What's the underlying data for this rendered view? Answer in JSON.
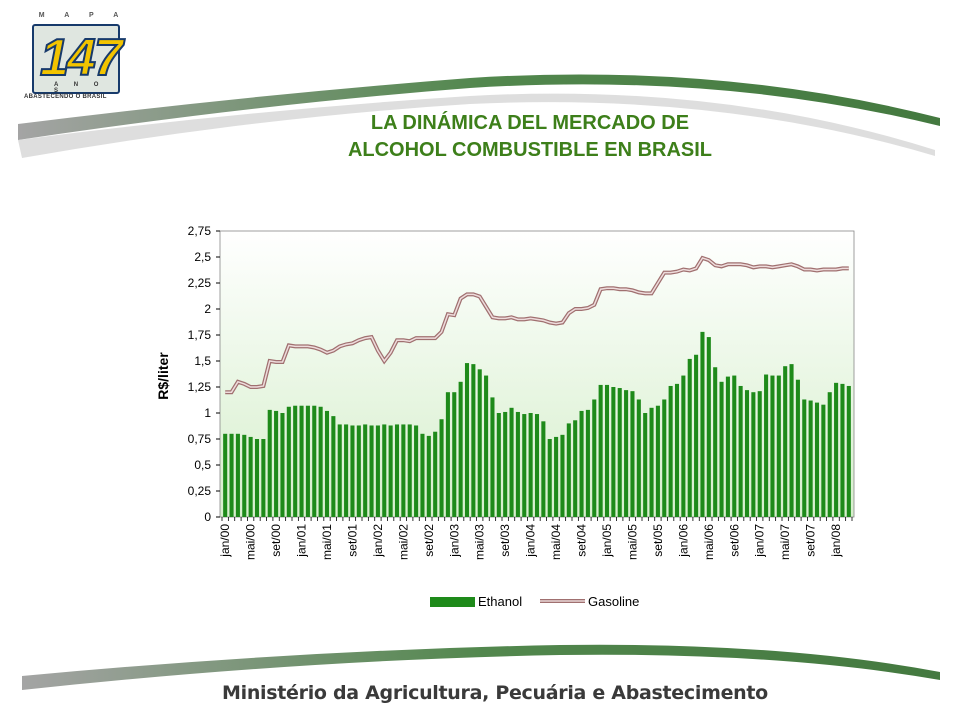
{
  "logo": {
    "top_text": "M A P A",
    "number": "147",
    "anos": "A N O S",
    "tagline": "ABASTECENDO O BRASIL"
  },
  "title": {
    "line1": "LA DINÁMICA DEL MERCADO DE",
    "line2": "ALCOHOL COMBUSTIBLE EN BRASIL"
  },
  "footer": {
    "text": "Ministério da Agricultura, Pecuária e Abastecimento"
  },
  "colors": {
    "accent_green": "#3d7f1a",
    "ethanol_bar": "#1e8a1a",
    "gasoline_line": "#c89898",
    "plot_bg_top": "#ffffff",
    "plot_bg_bottom": "#d8f0d0"
  },
  "chart_data": {
    "type": "bar",
    "title": "",
    "xlabel": "",
    "ylabel": "R$/liter",
    "ylim": [
      0,
      2.75
    ],
    "yticks": [
      "0",
      "0,25",
      "0,5",
      "0,75",
      "1",
      "1,25",
      "1,5",
      "1,75",
      "2",
      "2,25",
      "2,5",
      "2,75"
    ],
    "xtick_labels": [
      "jan/00",
      "mai/00",
      "set/00",
      "jan/01",
      "mai/01",
      "set/01",
      "jan/02",
      "mai/02",
      "set/02",
      "jan/03",
      "mai/03",
      "set/03",
      "jan/04",
      "mai/04",
      "set/04",
      "jan/05",
      "mai/05",
      "set/05",
      "jan/06",
      "mai/06",
      "set/06",
      "jan/07",
      "mai/07",
      "set/07",
      "jan/08"
    ],
    "months_per_tick": 4,
    "grid": false,
    "legend": "bottom",
    "series": [
      {
        "name": "Ethanol",
        "kind": "bar",
        "values": [
          0.8,
          0.8,
          0.8,
          0.79,
          0.77,
          0.75,
          0.75,
          1.03,
          1.02,
          1.0,
          1.06,
          1.07,
          1.07,
          1.07,
          1.07,
          1.06,
          1.02,
          0.97,
          0.89,
          0.89,
          0.88,
          0.88,
          0.89,
          0.88,
          0.88,
          0.89,
          0.88,
          0.89,
          0.89,
          0.89,
          0.88,
          0.8,
          0.78,
          0.82,
          0.94,
          1.2,
          1.2,
          1.3,
          1.48,
          1.47,
          1.42,
          1.36,
          1.15,
          1.0,
          1.01,
          1.05,
          1.01,
          0.99,
          1.0,
          0.99,
          0.92,
          0.75,
          0.77,
          0.79,
          0.9,
          0.93,
          1.02,
          1.03,
          1.13,
          1.27,
          1.27,
          1.25,
          1.24,
          1.22,
          1.21,
          1.13,
          1.0,
          1.05,
          1.07,
          1.13,
          1.26,
          1.28,
          1.36,
          1.52,
          1.56,
          1.78,
          1.73,
          1.44,
          1.3,
          1.35,
          1.36,
          1.26,
          1.22,
          1.2,
          1.21,
          1.37,
          1.36,
          1.36,
          1.45,
          1.47,
          1.32,
          1.13,
          1.12,
          1.1,
          1.08,
          1.2,
          1.29,
          1.28,
          1.26
        ]
      },
      {
        "name": "Gasoline",
        "kind": "line",
        "values": [
          1.2,
          1.2,
          1.3,
          1.28,
          1.25,
          1.25,
          1.26,
          1.5,
          1.49,
          1.49,
          1.65,
          1.64,
          1.64,
          1.64,
          1.63,
          1.61,
          1.58,
          1.6,
          1.64,
          1.66,
          1.67,
          1.7,
          1.72,
          1.73,
          1.6,
          1.5,
          1.58,
          1.7,
          1.7,
          1.69,
          1.72,
          1.72,
          1.72,
          1.72,
          1.78,
          1.95,
          1.94,
          2.1,
          2.14,
          2.14,
          2.12,
          2.02,
          1.92,
          1.91,
          1.91,
          1.92,
          1.9,
          1.9,
          1.91,
          1.9,
          1.89,
          1.87,
          1.86,
          1.87,
          1.96,
          2.0,
          2.0,
          2.01,
          2.04,
          2.19,
          2.2,
          2.2,
          2.19,
          2.19,
          2.18,
          2.16,
          2.15,
          2.15,
          2.25,
          2.35,
          2.35,
          2.36,
          2.38,
          2.37,
          2.39,
          2.49,
          2.47,
          2.42,
          2.41,
          2.43,
          2.43,
          2.43,
          2.42,
          2.4,
          2.41,
          2.41,
          2.4,
          2.41,
          2.42,
          2.43,
          2.41,
          2.38,
          2.38,
          2.37,
          2.38,
          2.38,
          2.38,
          2.39,
          2.39
        ]
      }
    ]
  }
}
